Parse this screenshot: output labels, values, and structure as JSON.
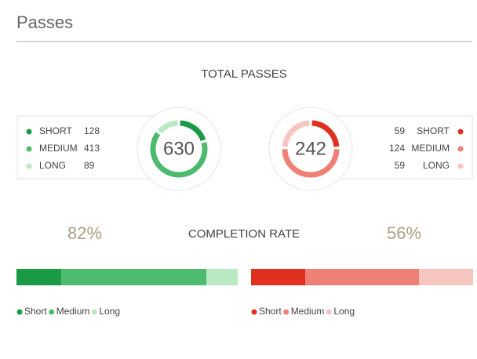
{
  "header": {
    "title": "Passes"
  },
  "total_passes": {
    "title": "TOTAL PASSES",
    "teams": [
      {
        "total": 630,
        "categories": [
          "SHORT",
          "MEDIUM",
          "LONG"
        ],
        "values": [
          128,
          413,
          89
        ],
        "colors": [
          "#1b9a46",
          "#4dbb6d",
          "#b8e9c2"
        ]
      },
      {
        "total": 242,
        "categories": [
          "SHORT",
          "MEDIUM",
          "LONG"
        ],
        "values": [
          59,
          124,
          59
        ],
        "colors": [
          "#e0301f",
          "#ee8076",
          "#f8c6c1"
        ]
      }
    ]
  },
  "completion_rate": {
    "title": "COMPLETION RATE",
    "teams": [
      {
        "rate": "82%",
        "legend": [
          "Short",
          "Medium",
          "Long"
        ]
      },
      {
        "rate": "56%",
        "legend": [
          "Short",
          "Medium",
          "Long"
        ]
      }
    ]
  }
}
